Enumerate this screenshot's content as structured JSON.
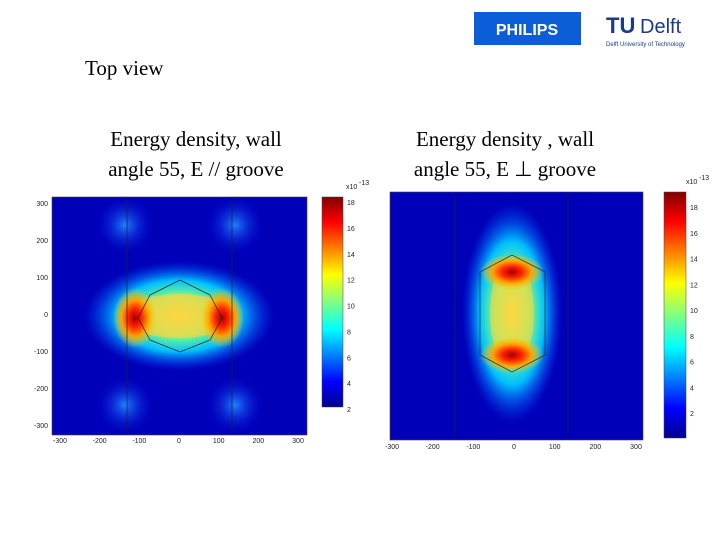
{
  "logos": {
    "philips": "PHILIPS",
    "tu": "TU",
    "delft": "Delft",
    "tagline": "Delft University of Technology"
  },
  "heading": "Top view",
  "panels": [
    {
      "title": [
        "Energy density, wall",
        "angle 55,  E // groove"
      ],
      "yticks": [
        "300",
        "200",
        "100",
        "0",
        "-100",
        "-200",
        "-300"
      ],
      "xticks": [
        "-300",
        "-200",
        "-100",
        "0",
        "100",
        "200",
        "300"
      ],
      "colorbar": {
        "base": "x10",
        "exponent": "-13",
        "ticks": [
          "18",
          "16",
          "14",
          "12",
          "10",
          "8",
          "6",
          "4",
          "2"
        ]
      }
    },
    {
      "title": [
        "Energy density , wall",
        "angle 55, E ⊥ groove"
      ],
      "xticks": [
        "-300",
        "-200",
        "-100",
        "0",
        "100",
        "200",
        "300"
      ],
      "colorbar": {
        "base": "x10",
        "exponent": "-13",
        "ticks": [
          "18",
          "16",
          "14",
          "12",
          "10",
          "8",
          "6",
          "4",
          "2"
        ]
      }
    }
  ]
}
